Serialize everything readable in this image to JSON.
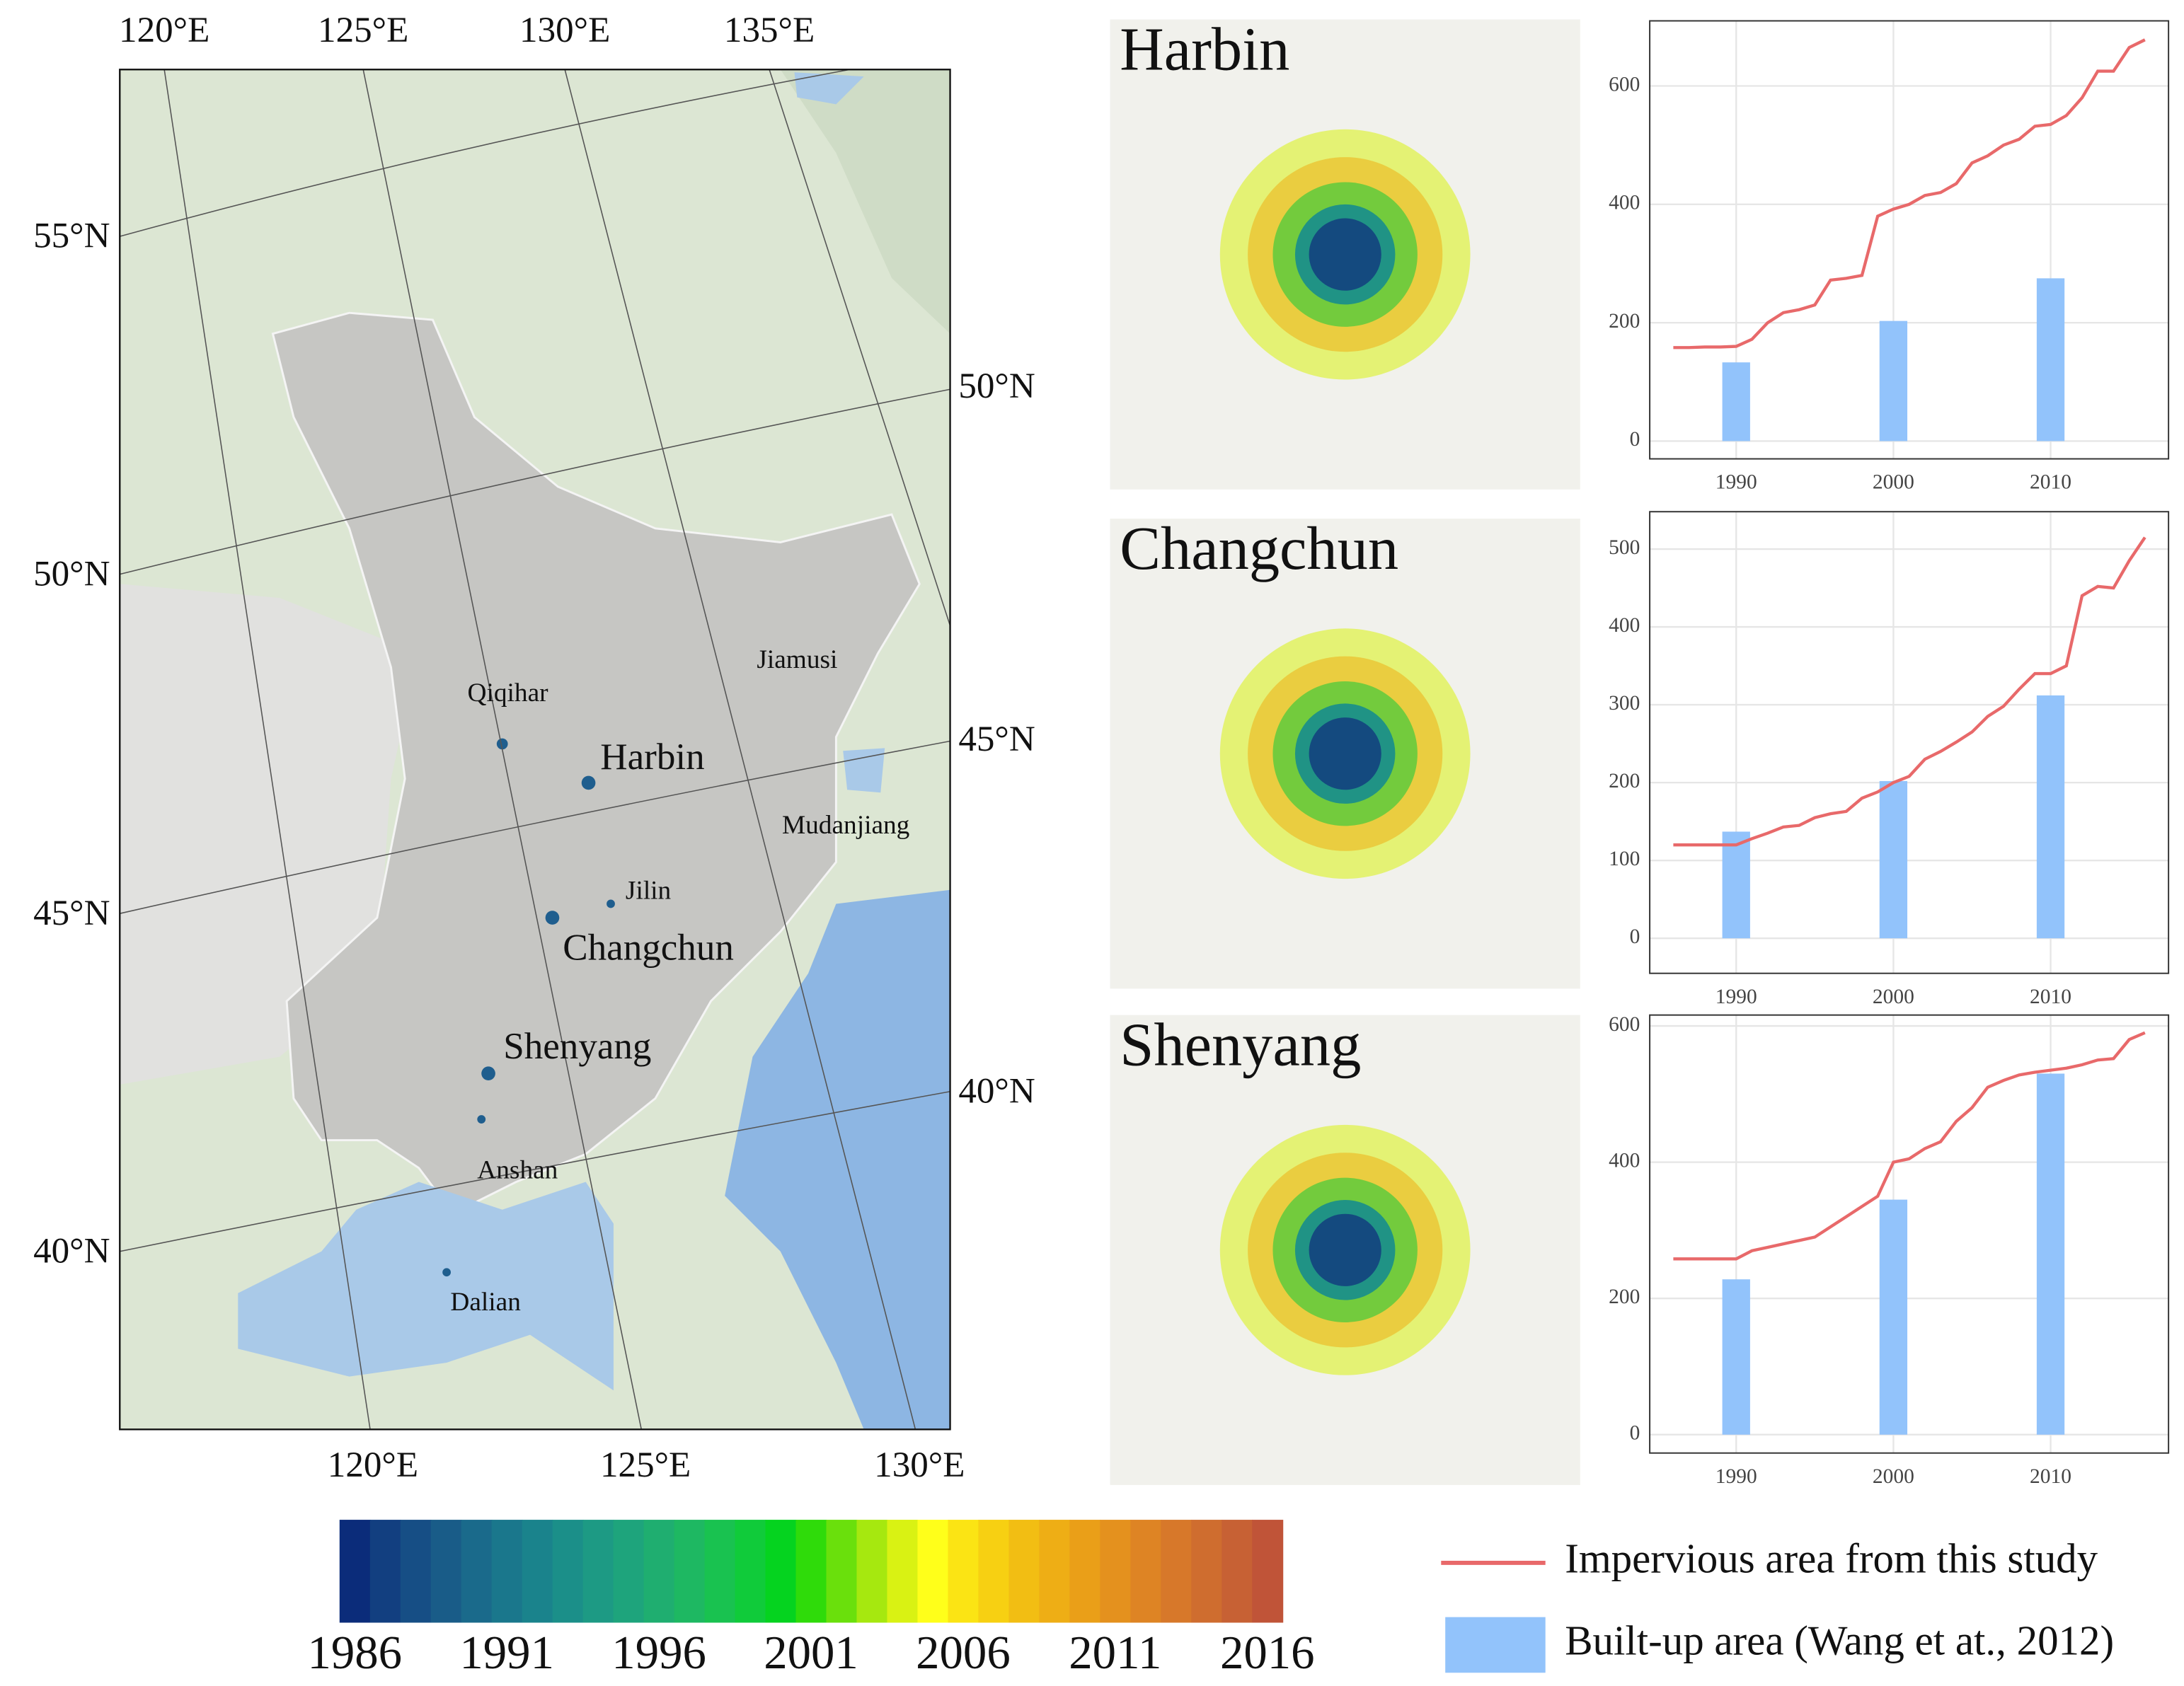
{
  "map": {
    "lon_top": [
      "120°E",
      "125°E",
      "130°E",
      "135°E"
    ],
    "lat_left": [
      "55°N",
      "50°N",
      "45°N",
      "40°N"
    ],
    "lat_right": [
      "50°N",
      "45°N",
      "40°N"
    ],
    "lon_bottom": [
      "120°E",
      "125°E",
      "130°E"
    ],
    "cities": [
      "Jiamusi",
      "Qiqihar",
      "Harbin",
      "Mudanjiang",
      "Jilin",
      "Changchun",
      "Shenyang",
      "Anshan",
      "Dalian"
    ]
  },
  "colorbar": {
    "ticks": [
      1986,
      1991,
      1996,
      2001,
      2006,
      2011,
      2016
    ],
    "colors": [
      "#0b2c7a",
      "#123f80",
      "#164e85",
      "#195c88",
      "#1a6a8b",
      "#1a778c",
      "#1a838c",
      "#1b8f89",
      "#1d9a84",
      "#1ea47c",
      "#1fae70",
      "#1eb862",
      "#19c250",
      "#10cb3a",
      "#05d31f",
      "#2fdb0a",
      "#6ae00c",
      "#a6e80f",
      "#d9f213",
      "#ffff1a",
      "#fbe414",
      "#f7d012",
      "#f2be13",
      "#eeae15",
      "#ea9f18",
      "#e4911e",
      "#de8424",
      "#d7782a",
      "#cf6d2f",
      "#c76134",
      "#c05438"
    ]
  },
  "chart_data": [
    {
      "type": "combo",
      "title": "Harbin",
      "x": [
        1986,
        1987,
        1988,
        1989,
        1990,
        1991,
        1992,
        1993,
        1994,
        1995,
        1996,
        1997,
        1998,
        1999,
        2000,
        2001,
        2002,
        2003,
        2004,
        2005,
        2006,
        2007,
        2008,
        2009,
        2010,
        2011,
        2012,
        2013,
        2014,
        2015,
        2016
      ],
      "series": [
        {
          "name": "Impervious area from this study",
          "color": "#e8696a",
          "values": [
            158,
            158,
            159,
            159,
            160,
            172,
            200,
            217,
            222,
            230,
            272,
            275,
            280,
            380,
            392,
            400,
            415,
            420,
            435,
            470,
            482,
            500,
            510,
            532,
            535,
            550,
            580,
            625,
            625,
            665,
            678
          ]
        },
        {
          "name": "Built-up area (Wang et at., 2012)",
          "color": "#92c3fb",
          "x": [
            1990,
            2000,
            2010
          ],
          "values": [
            133,
            203,
            275
          ]
        }
      ],
      "xlim": [
        1984.5,
        2017.5
      ],
      "xticks": [
        1990,
        2000,
        2010
      ],
      "ylim": [
        -30,
        710
      ],
      "yticks": [
        0,
        200,
        400,
        600
      ],
      "grid": true
    },
    {
      "type": "combo",
      "title": "Changchun",
      "x": [
        1986,
        1987,
        1988,
        1989,
        1990,
        1991,
        1992,
        1993,
        1994,
        1995,
        1996,
        1997,
        1998,
        1999,
        2000,
        2001,
        2002,
        2003,
        2004,
        2005,
        2006,
        2007,
        2008,
        2009,
        2010,
        2011,
        2012,
        2013,
        2014,
        2015,
        2016
      ],
      "series": [
        {
          "values": [
            120,
            120,
            120,
            120,
            120,
            128,
            135,
            143,
            145,
            155,
            160,
            163,
            180,
            188,
            200,
            208,
            230,
            240,
            252,
            265,
            285,
            298,
            320,
            340,
            340,
            350,
            440,
            452,
            450,
            485,
            515
          ]
        },
        {
          "x": [
            1990,
            2000,
            2010
          ],
          "values": [
            137,
            202,
            312
          ]
        }
      ],
      "xlim": [
        1984.5,
        2017.5
      ],
      "xticks": [
        1990,
        2000,
        2010
      ],
      "ylim": [
        -45,
        548
      ],
      "yticks": [
        0,
        100,
        200,
        300,
        400,
        500
      ],
      "grid": true
    },
    {
      "type": "combo",
      "title": "Shenyang",
      "x": [
        1986,
        1987,
        1988,
        1989,
        1990,
        1991,
        1992,
        1993,
        1994,
        1995,
        1996,
        1997,
        1998,
        1999,
        2000,
        2001,
        2002,
        2003,
        2004,
        2005,
        2006,
        2007,
        2008,
        2009,
        2010,
        2011,
        2012,
        2013,
        2014,
        2015,
        2016
      ],
      "series": [
        {
          "values": [
            258,
            258,
            258,
            258,
            258,
            270,
            275,
            280,
            285,
            290,
            305,
            320,
            335,
            350,
            400,
            405,
            420,
            430,
            460,
            480,
            510,
            520,
            528,
            532,
            535,
            538,
            543,
            550,
            552,
            580,
            590
          ]
        },
        {
          "x": [
            1990,
            2000,
            2010
          ],
          "values": [
            228,
            345,
            530
          ]
        }
      ],
      "xlim": [
        1984.5,
        2017.5
      ],
      "xticks": [
        1990,
        2000,
        2010
      ],
      "ylim": [
        -27,
        616
      ],
      "yticks": [
        0,
        200,
        400,
        600
      ],
      "grid": true
    }
  ]
}
